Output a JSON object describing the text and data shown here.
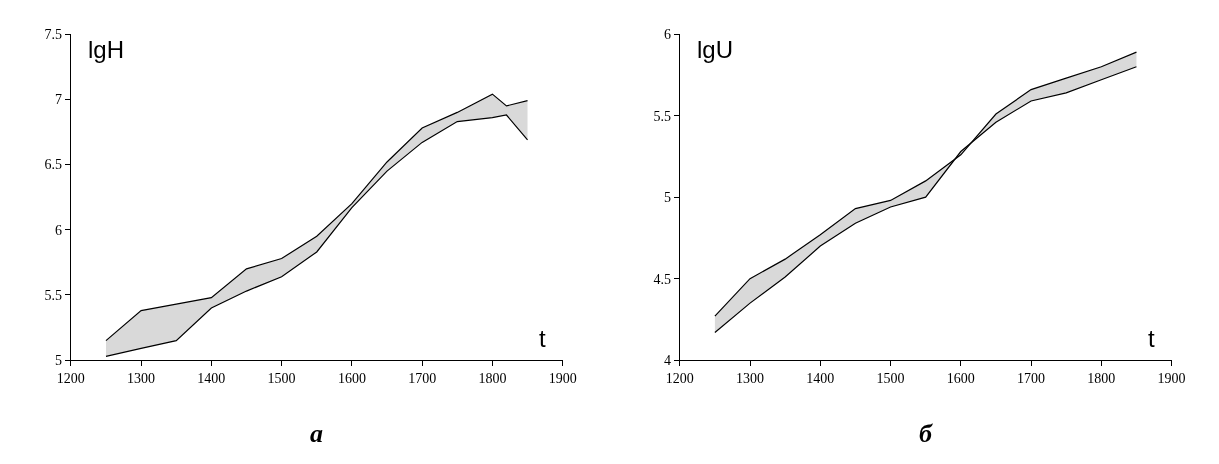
{
  "chart_data": [
    {
      "type": "line",
      "xlabel": "t",
      "ylabel": "lgH",
      "annotations": [
        "а"
      ],
      "xlim": [
        1200,
        1900
      ],
      "xticks": [
        1200,
        1300,
        1400,
        1500,
        1600,
        1700,
        1800,
        1900
      ],
      "ylim": [
        5,
        7.5
      ],
      "yticks": [
        5,
        5.5,
        6,
        6.5,
        7,
        7.5
      ],
      "x": [
        1250,
        1300,
        1350,
        1400,
        1450,
        1500,
        1550,
        1600,
        1650,
        1700,
        1750,
        1800,
        1820,
        1850
      ],
      "series": [
        {
          "color": "#000000",
          "values": [
            5.15,
            5.38,
            5.43,
            5.48,
            5.7,
            5.78,
            5.95,
            6.2,
            6.52,
            6.78,
            6.9,
            7.04,
            6.95,
            6.99
          ],
          "upper": [
            5.15,
            5.38,
            5.43,
            5.48,
            5.7,
            5.78,
            5.95,
            6.2,
            6.52,
            6.78,
            6.9,
            7.04,
            6.95,
            6.99
          ],
          "lower": [
            5.03,
            5.09,
            5.15,
            5.4,
            5.53,
            5.64,
            5.83,
            6.17,
            6.45,
            6.67,
            6.83,
            6.86,
            6.88,
            6.69
          ]
        },
        {
          "color": "#000000",
          "values": [
            5.03,
            5.09,
            5.15,
            5.4,
            5.53,
            5.64,
            5.83,
            6.17,
            6.45,
            6.67,
            6.83,
            6.86,
            6.88,
            6.69
          ]
        }
      ]
    },
    {
      "type": "line",
      "xlabel": "t",
      "ylabel": "lgU",
      "annotations": [
        "б"
      ],
      "xlim": [
        1200,
        1900
      ],
      "xticks": [
        1200,
        1300,
        1400,
        1500,
        1600,
        1700,
        1800,
        1900
      ],
      "ylim": [
        4,
        6
      ],
      "yticks": [
        4,
        4.5,
        5,
        5.5,
        6
      ],
      "x": [
        1250,
        1300,
        1350,
        1400,
        1450,
        1500,
        1550,
        1600,
        1650,
        1700,
        1750,
        1800,
        1850
      ],
      "series": [
        {
          "color": "#000000",
          "values": [
            4.27,
            4.5,
            4.62,
            4.77,
            4.93,
            4.98,
            5.1,
            5.26,
            5.51,
            5.66,
            5.73,
            5.8,
            5.89
          ],
          "upper": [
            4.27,
            4.5,
            4.62,
            4.77,
            4.93,
            4.98,
            5.1,
            5.26,
            5.51,
            5.66,
            5.73,
            5.8,
            5.89
          ],
          "lower": [
            4.17,
            4.35,
            4.51,
            4.7,
            4.84,
            4.94,
            5.0,
            5.28,
            5.46,
            5.59,
            5.64,
            5.72,
            5.8
          ]
        },
        {
          "color": "#000000",
          "values": [
            4.17,
            4.35,
            4.51,
            4.7,
            4.84,
            4.94,
            5.0,
            5.28,
            5.46,
            5.59,
            5.64,
            5.72,
            5.8
          ]
        }
      ]
    }
  ]
}
